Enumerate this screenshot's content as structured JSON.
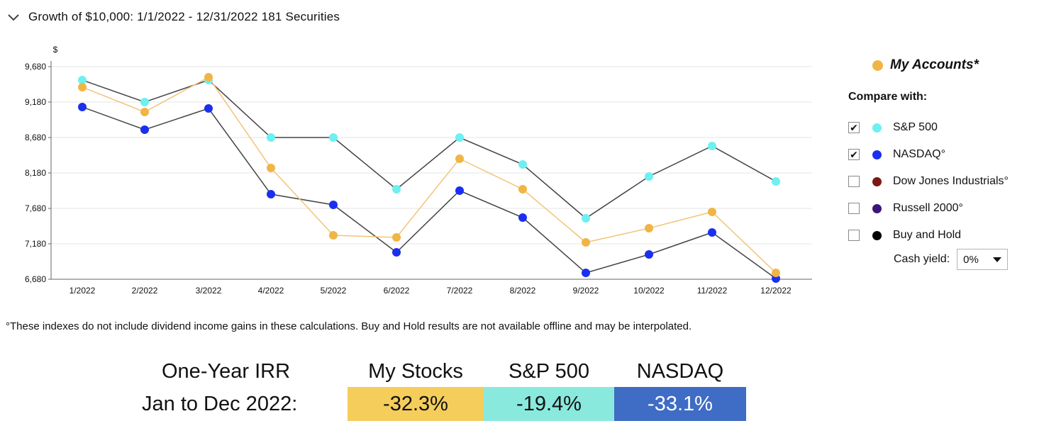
{
  "header": {
    "title": "Growth of $10,000:  1/1/2022 - 12/31/2022  181 Securities"
  },
  "chart_data": {
    "type": "line",
    "ylabel": "$",
    "ylim": [
      6680,
      9680
    ],
    "yticks": [
      "9,680",
      "9,180",
      "8,680",
      "8,180",
      "7,680",
      "7,180",
      "6,680"
    ],
    "ytick_values": [
      9680,
      9180,
      8680,
      8180,
      7680,
      7180,
      6680
    ],
    "categories": [
      "1/2022",
      "2/2022",
      "3/2022",
      "4/2022",
      "5/2022",
      "6/2022",
      "7/2022",
      "8/2022",
      "9/2022",
      "10/2022",
      "11/2022",
      "12/2022"
    ],
    "grid": true,
    "legend_placement": "right",
    "series": [
      {
        "name": "My Accounts*",
        "color": "#f0b545",
        "line_color": "#f2c47a",
        "values": [
          9390,
          9040,
          9530,
          8250,
          7300,
          7270,
          8380,
          7950,
          7200,
          7400,
          7630,
          6770
        ]
      },
      {
        "name": "S&P 500",
        "color": "#6df0f0",
        "line_color": "#444444",
        "values": [
          9490,
          9180,
          9490,
          8680,
          8680,
          7950,
          8680,
          8300,
          7540,
          8130,
          8560,
          8060
        ]
      },
      {
        "name": "NASDAQ°",
        "color": "#1b2ff0",
        "line_color": "#444444",
        "values": [
          9110,
          8790,
          9090,
          7880,
          7730,
          7060,
          7930,
          7550,
          6770,
          7030,
          7340,
          6690
        ]
      }
    ]
  },
  "legend": {
    "accounts_label": "My Accounts*",
    "accounts_color": "#f0b545",
    "compare_label": "Compare with:",
    "items": [
      {
        "label": "S&P 500",
        "checked": true,
        "color": "#6df0f0"
      },
      {
        "label": "NASDAQ°",
        "checked": true,
        "color": "#1b2ff0"
      },
      {
        "label": "Dow Jones Industrials°",
        "checked": false,
        "color": "#7a1a10"
      },
      {
        "label": "Russell 2000°",
        "checked": false,
        "color": "#3d1578"
      },
      {
        "label": "Buy and Hold",
        "checked": false,
        "color": "#000000"
      }
    ],
    "cash_yield_label": "Cash yield:",
    "cash_yield_value": "0%"
  },
  "footnote": "°These indexes do not include dividend income gains in these calculations. Buy and Hold results are not available offline and may be interpolated.",
  "irr": {
    "label_line1": "One-Year IRR",
    "label_line2": "Jan to Dec 2022:",
    "headers": [
      "My Stocks",
      "S&P 500",
      "NASDAQ"
    ],
    "values": [
      "-32.3%",
      "-19.4%",
      "-33.1%"
    ],
    "colors": [
      "#f5cd5b",
      "#89e9dd",
      "#3f6cc4"
    ]
  }
}
